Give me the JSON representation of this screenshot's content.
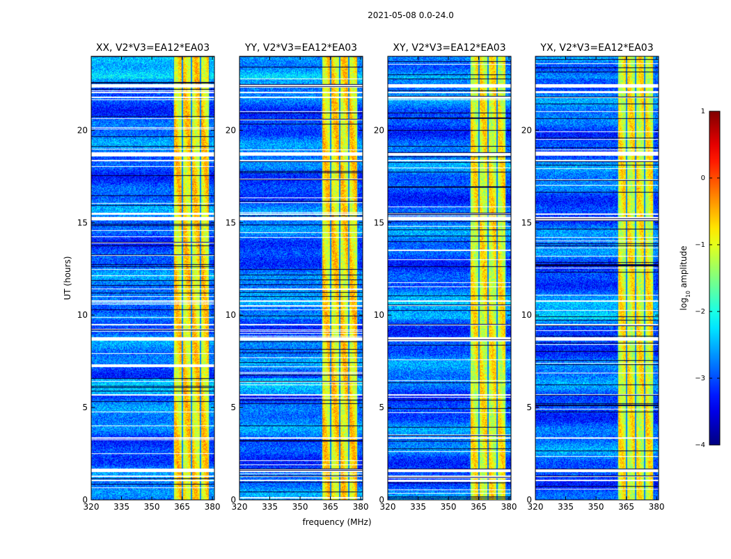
{
  "figure": {
    "title": "2021-05-08 0.0-24.0"
  },
  "chart_data": {
    "type": "heatmap",
    "title": "2021-05-08 0.0-24.0",
    "xlabel": "frequency (MHz)",
    "ylabel": "UT (hours)",
    "xlim": [
      320,
      381
    ],
    "ylim": [
      0,
      24
    ],
    "xticks": [
      "320",
      "335",
      "350",
      "365",
      "380"
    ],
    "yticks": [
      "0",
      "5",
      "10",
      "15",
      "20"
    ],
    "panels": [
      {
        "title": "XX, V2*V3=EA12*EA03",
        "pol": "XX"
      },
      {
        "title": "YY, V2*V3=EA12*EA03",
        "pol": "YY"
      },
      {
        "title": "XY, V2*V3=EA12*EA03",
        "pol": "XY"
      },
      {
        "title": "YX, V2*V3=EA12*EA03",
        "pol": "YX"
      }
    ],
    "colorbar": {
      "label": "log$_{10}$ amplitude",
      "label_text": "log",
      "label_sub": "10",
      "label_rest": " amplitude",
      "range": [
        -4,
        1
      ],
      "ticks": [
        {
          "value": 1,
          "label": "1"
        },
        {
          "value": 0,
          "label": "0"
        },
        {
          "value": -1,
          "label": "−1"
        },
        {
          "value": -2,
          "label": "−2"
        },
        {
          "value": -3,
          "label": "−3"
        },
        {
          "value": -4,
          "label": "−4"
        }
      ],
      "colormap": "jet"
    },
    "rfi_band_mhz": [
      360.5,
      378.5
    ],
    "rfi_subchannels_mhz": [
      360.5,
      365,
      369.5,
      374,
      378.5
    ],
    "flagged_ut_hours": [
      22.5,
      22.1,
      21.8,
      18.8,
      18.4,
      15.5,
      15.3,
      10.8,
      9.5,
      8.8,
      5.7,
      3.4,
      1.7,
      1.3,
      1.1
    ]
  }
}
